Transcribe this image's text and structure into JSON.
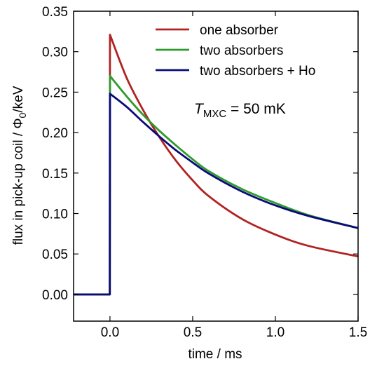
{
  "chart_data": {
    "type": "line",
    "xlabel": "time / ms",
    "ylabel_pre": "flux in pick-up coil  /  ",
    "ylabel_phi": "Φ",
    "ylabel_sub": "0",
    "ylabel_post": "/keV",
    "xlim": [
      -0.22,
      1.5
    ],
    "ylim": [
      -0.033,
      0.35
    ],
    "x_ticks": [
      0.0,
      0.5,
      1.0,
      1.5
    ],
    "x_tick_labels": [
      "0.0",
      "0.5",
      "1.0",
      "1.5"
    ],
    "y_ticks": [
      0.0,
      0.05,
      0.1,
      0.15,
      0.2,
      0.25,
      0.3,
      0.35
    ],
    "y_tick_labels": [
      "0.00",
      "0.05",
      "0.10",
      "0.15",
      "0.20",
      "0.25",
      "0.30",
      "0.35"
    ],
    "legend_position": "top-right",
    "grid": false,
    "annotation": {
      "symbol": "T",
      "subscript": "MXC",
      "text": " = 50 mK"
    },
    "series": [
      {
        "name": "one absorber",
        "color": "#b22222",
        "x": [
          -0.22,
          -0.001,
          0.0,
          0.1,
          0.2,
          0.3,
          0.4,
          0.5,
          0.6,
          0.8,
          1.0,
          1.2,
          1.5
        ],
        "y": [
          0.0,
          0.0,
          0.321,
          0.268,
          0.228,
          0.194,
          0.165,
          0.141,
          0.121,
          0.093,
          0.074,
          0.06,
          0.047
        ]
      },
      {
        "name": "two absorbers",
        "color": "#2e9b2e",
        "x": [
          -0.22,
          -0.001,
          0.0,
          0.1,
          0.2,
          0.3,
          0.4,
          0.5,
          0.6,
          0.8,
          1.0,
          1.2,
          1.5
        ],
        "y": [
          0.0,
          0.0,
          0.27,
          0.245,
          0.222,
          0.202,
          0.184,
          0.167,
          0.152,
          0.13,
          0.113,
          0.098,
          0.082
        ]
      },
      {
        "name": "two absorbers + Ho",
        "color": "#0a0a7a",
        "x": [
          -0.22,
          -0.001,
          0.0,
          0.1,
          0.2,
          0.3,
          0.4,
          0.5,
          0.6,
          0.8,
          1.0,
          1.2,
          1.5
        ],
        "y": [
          0.0,
          0.0,
          0.248,
          0.232,
          0.213,
          0.195,
          0.178,
          0.163,
          0.149,
          0.127,
          0.11,
          0.097,
          0.082
        ]
      }
    ]
  }
}
